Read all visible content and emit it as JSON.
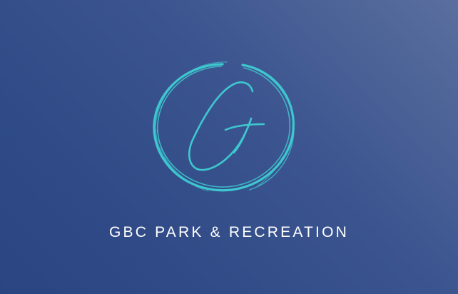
{
  "brand": {
    "name": "GBC PARK & RECREATION",
    "logo_letter": "G",
    "accent_color": "#3ec7cf",
    "text_color": "#ffffff"
  },
  "background": {
    "colors": [
      "#2b4583",
      "#5a6f9e"
    ]
  },
  "icons": {
    "logo": "brush-circle-letter-g-logo"
  }
}
